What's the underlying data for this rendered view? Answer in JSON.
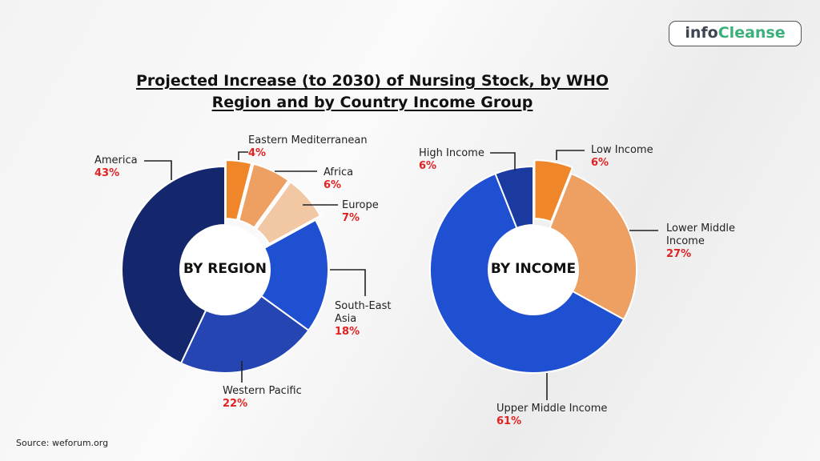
{
  "title_line1": "Projected Increase (to 2030) of Nursing Stock, by WHO",
  "title_line2": "Region and by Country Income Group",
  "logo": {
    "part1": "info",
    "part2": "Cleanse"
  },
  "source": "Source: weforum.org",
  "chart_data": [
    {
      "type": "pie",
      "donut": true,
      "center_label": "BY REGION",
      "categories": [
        "Eastern Mediterranean",
        "Africa",
        "Europe",
        "South-East Asia",
        "Western Pacific",
        "America"
      ],
      "values": [
        4,
        6,
        7,
        18,
        22,
        43
      ],
      "labels": [
        "4%",
        "6%",
        "7%",
        "18%",
        "22%",
        "43%"
      ],
      "colors": [
        "#f0862a",
        "#ee9f62",
        "#f2c7a4",
        "#1f50d2",
        "#2445b2",
        "#15276c"
      ]
    },
    {
      "type": "pie",
      "donut": true,
      "center_label": "BY INCOME",
      "categories": [
        "Low Income",
        "Lower Middle Income",
        "Upper Middle Income",
        "High Income"
      ],
      "values": [
        6,
        27,
        61,
        6
      ],
      "labels": [
        "6%",
        "27%",
        "61%",
        "6%"
      ],
      "colors": [
        "#f0862a",
        "#ee9f62",
        "#1f50d2",
        "#1a3aa0"
      ]
    }
  ]
}
